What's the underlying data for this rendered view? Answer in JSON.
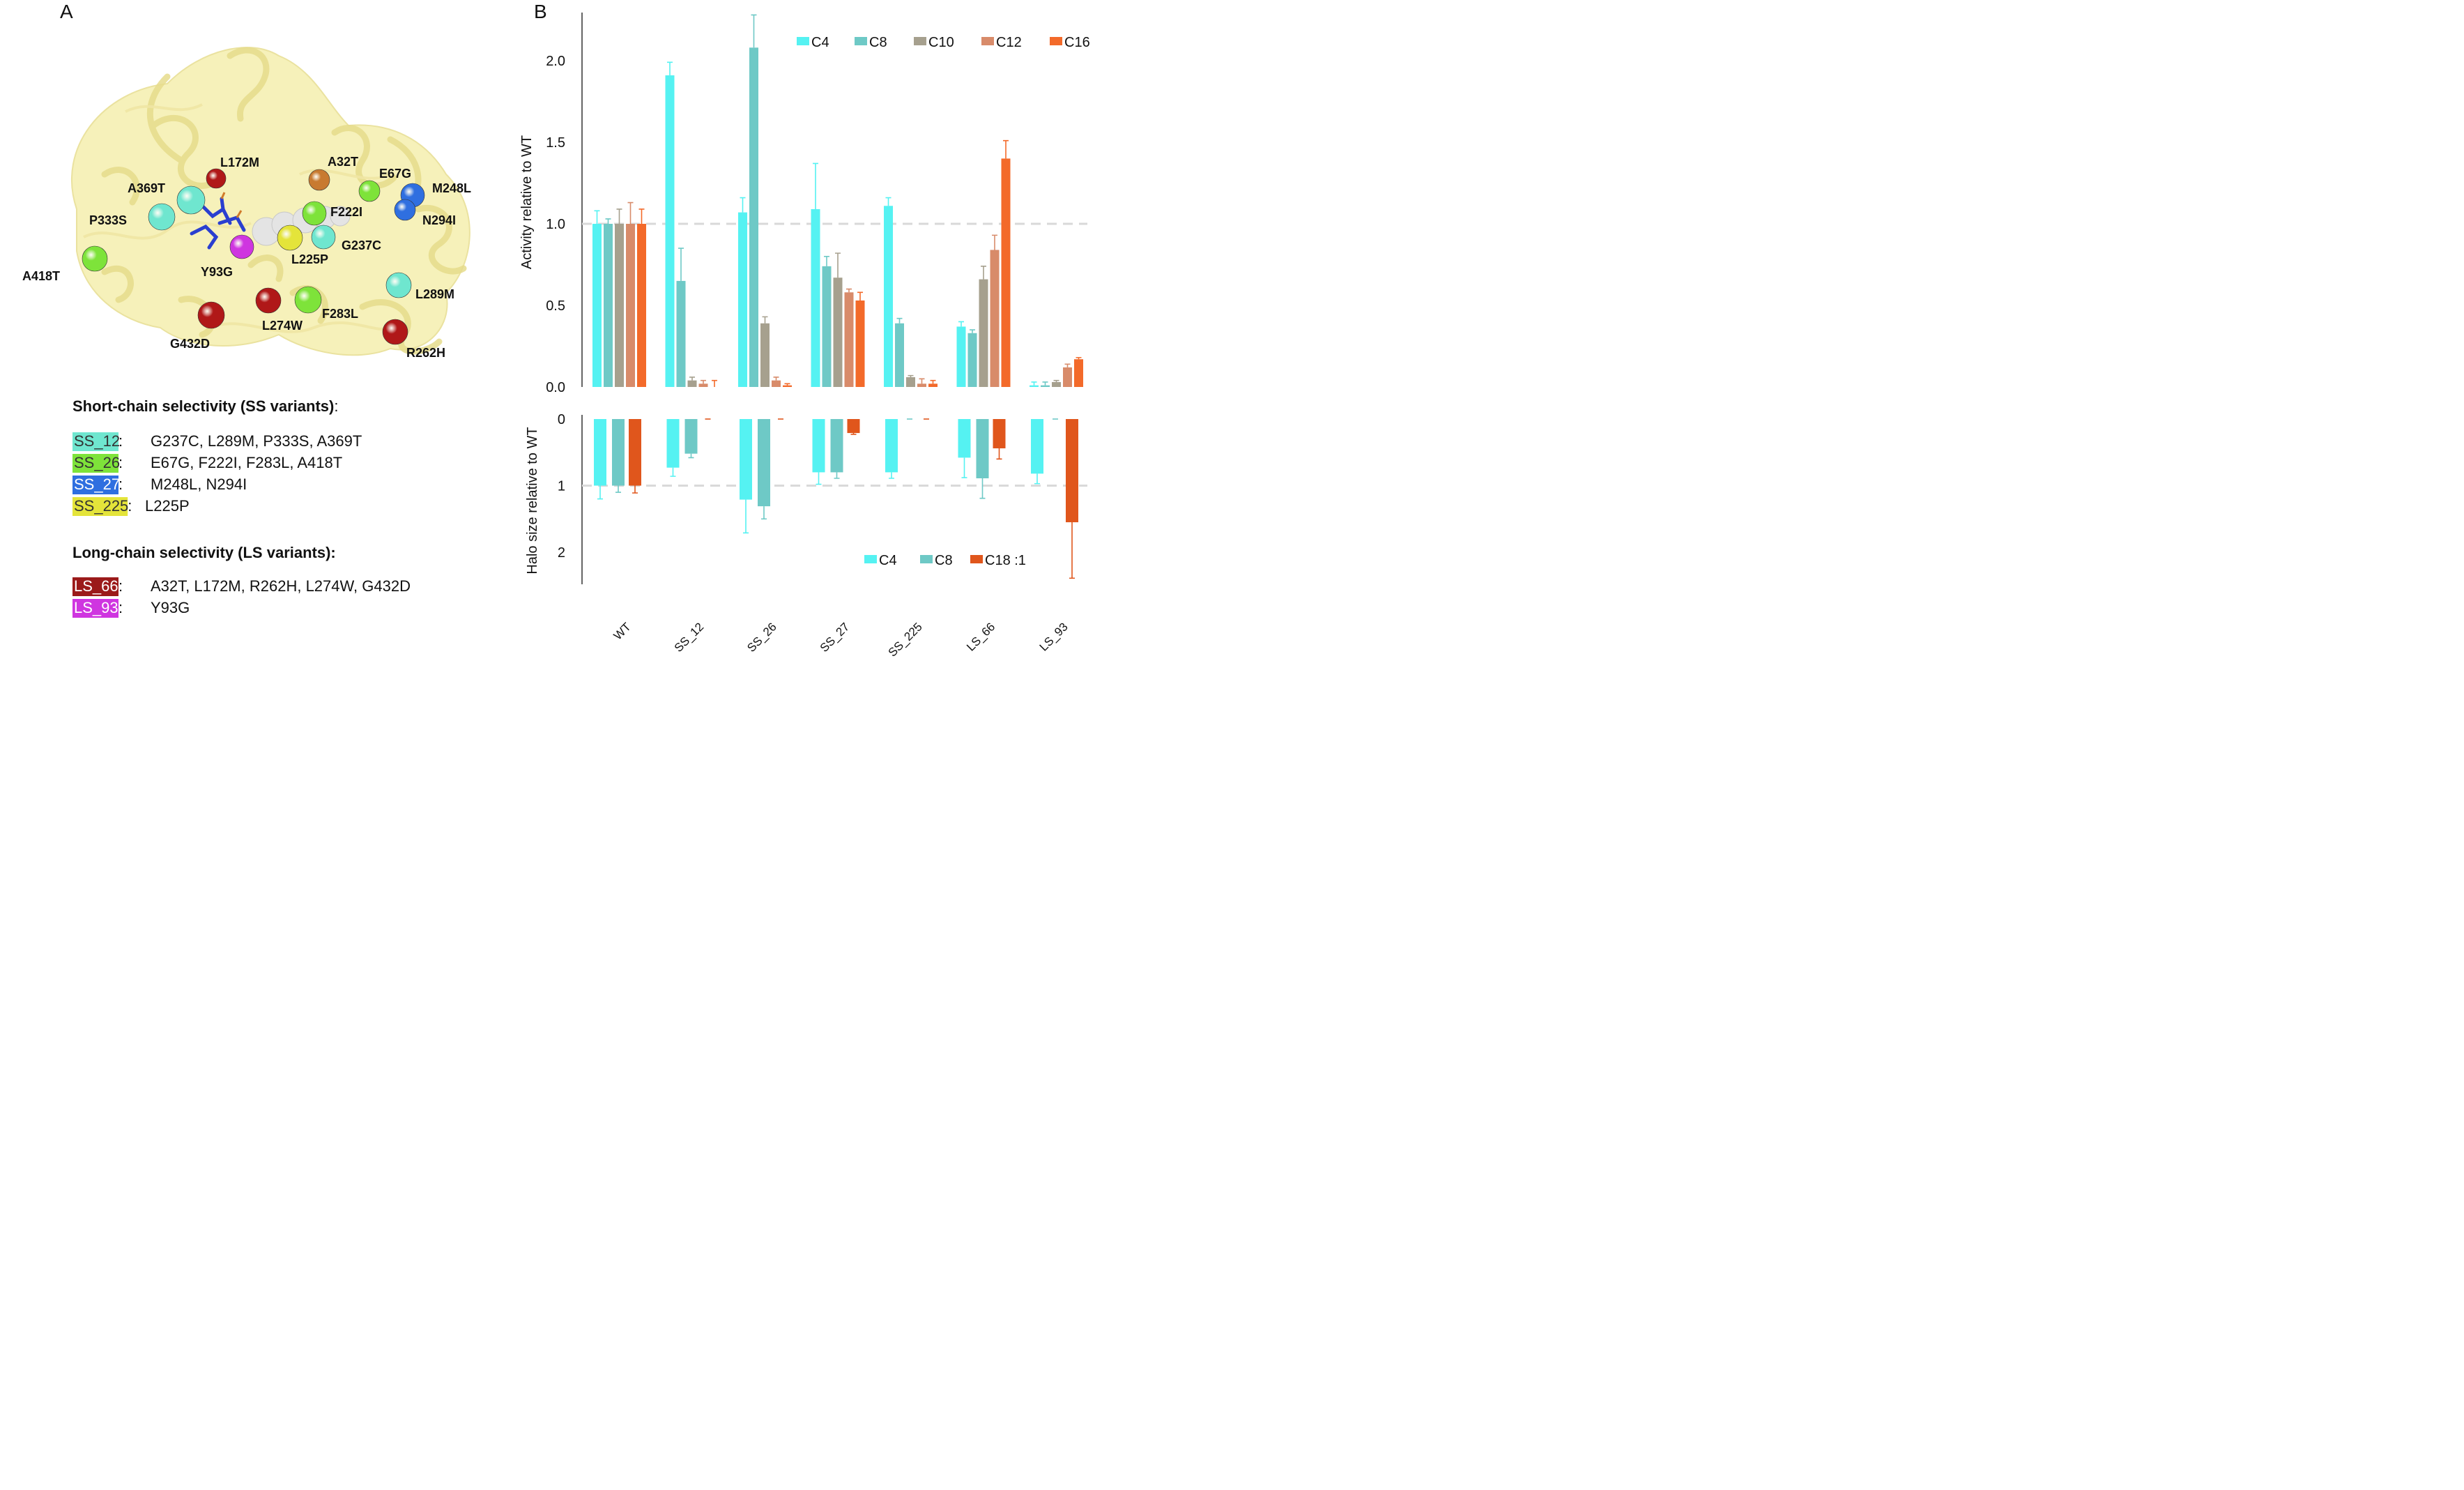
{
  "panelA": {
    "letter": "A",
    "residues": [
      {
        "label": "L172M",
        "color": "#b01818",
        "group": "LS_66"
      },
      {
        "label": "A32T",
        "color": "#c87a30",
        "group": "LS_66"
      },
      {
        "label": "E67G",
        "color": "#7ee33a",
        "group": "SS_26"
      },
      {
        "label": "M248L",
        "color": "#2f6fe0",
        "group": "SS_27"
      },
      {
        "label": "A369T",
        "color": "#6fe6cf",
        "group": "SS_12"
      },
      {
        "label": "F222I",
        "color": "#7ee33a",
        "group": "SS_26"
      },
      {
        "label": "N294I",
        "color": "#2f6fe0",
        "group": "SS_27"
      },
      {
        "label": "P333S",
        "color": "#6fe6cf",
        "group": "SS_12"
      },
      {
        "label": "G237C",
        "color": "#6fe6cf",
        "group": "SS_12"
      },
      {
        "label": "L225P",
        "color": "#e4e43a",
        "group": "SS_225"
      },
      {
        "label": "Y93G",
        "color": "#cf35e0",
        "group": "LS_93"
      },
      {
        "label": "A418T",
        "color": "#7ee33a",
        "group": "SS_26"
      },
      {
        "label": "L289M",
        "color": "#6fe6cf",
        "group": "SS_12"
      },
      {
        "label": "L274W",
        "color": "#b01818",
        "group": "LS_66"
      },
      {
        "label": "F283L",
        "color": "#7ee33a",
        "group": "SS_26"
      },
      {
        "label": "G432D",
        "color": "#b01818",
        "group": "LS_66"
      },
      {
        "label": "R262H",
        "color": "#b01818",
        "group": "LS_66"
      }
    ],
    "short_chain": {
      "title": "Short-chain selectivity (SS variants)",
      "title_suffix": ":",
      "variants": [
        {
          "tag": "SS_12",
          "sep": ":",
          "color": "#6fe6cf",
          "mutations": "G237C, L289M, P333S, A369T"
        },
        {
          "tag": "SS_26",
          "sep": ":",
          "color": "#7ee33a",
          "mutations": "E67G, F222I, F283L, A418T"
        },
        {
          "tag": "SS_27",
          "sep": ":",
          "color": "#2f6fe0",
          "mutations": "M248L, N294I"
        },
        {
          "tag": "SS_225",
          "sep": ":",
          "color": "#e4e43a",
          "mutations": "L225P"
        }
      ]
    },
    "long_chain": {
      "title": "Long-chain selectivity (LS variants):",
      "variants": [
        {
          "tag": "LS_66",
          "sep": ":",
          "color": "#9b1a1a",
          "mutations": "A32T, L172M, R262H, L274W, G432D"
        },
        {
          "tag": "LS_93",
          "sep": ":",
          "color": "#cf35e0",
          "mutations": "Y93G"
        }
      ]
    }
  },
  "panelB": {
    "letter": "B"
  },
  "chart_data": [
    {
      "type": "bar",
      "title": "",
      "xlabel": "",
      "ylabel": "Activity relative to WT",
      "ylim": [
        0,
        2.3
      ],
      "yticks": [
        "0.0",
        "0.5",
        "1.0",
        "1.5",
        "2.0"
      ],
      "reference_line": 1.0,
      "legend_position": "top-right",
      "categories": [
        "WT",
        "SS_12",
        "SS_26",
        "SS_27",
        "SS_225",
        "LS_66",
        "LS_93"
      ],
      "series": [
        {
          "name": "C4",
          "color": "#55f2f2",
          "values": [
            1.0,
            1.91,
            1.07,
            1.09,
            1.11,
            0.37,
            0.01
          ],
          "errors": [
            0.08,
            0.08,
            0.09,
            0.28,
            0.05,
            0.03,
            0.02
          ]
        },
        {
          "name": "C8",
          "color": "#6ec9c6",
          "values": [
            1.0,
            0.65,
            2.08,
            0.74,
            0.39,
            0.33,
            0.01
          ],
          "errors": [
            0.03,
            0.2,
            0.2,
            0.06,
            0.03,
            0.02,
            0.02
          ]
        },
        {
          "name": "C10",
          "color": "#a6a08e",
          "values": [
            1.0,
            0.04,
            0.39,
            0.67,
            0.06,
            0.66,
            0.03
          ],
          "errors": [
            0.09,
            0.02,
            0.04,
            0.15,
            0.01,
            0.08,
            0.01
          ]
        },
        {
          "name": "C12",
          "color": "#d88b6a",
          "values": [
            1.0,
            0.02,
            0.04,
            0.58,
            0.02,
            0.84,
            0.12
          ],
          "errors": [
            0.13,
            0.02,
            0.02,
            0.02,
            0.03,
            0.09,
            0.02
          ]
        },
        {
          "name": "C16",
          "color": "#f36a2a",
          "values": [
            1.0,
            0.0,
            0.01,
            0.53,
            0.02,
            1.4,
            0.17
          ],
          "errors": [
            0.09,
            0.04,
            0.01,
            0.05,
            0.02,
            0.11,
            0.01
          ]
        }
      ]
    },
    {
      "type": "bar",
      "title": "",
      "xlabel": "",
      "ylabel": "Halo size relative to WT",
      "ylim": [
        0,
        2.5
      ],
      "yticks": [
        "0",
        "1",
        "2"
      ],
      "y_inverted": true,
      "reference_line": 1.0,
      "legend_position": "bottom-right",
      "categories": [
        "WT",
        "SS_12",
        "SS_26",
        "SS_27",
        "SS_225",
        "LS_66",
        "LS_93"
      ],
      "series": [
        {
          "name": "C4",
          "color": "#55f2f2",
          "values": [
            1.0,
            0.73,
            1.21,
            0.8,
            0.8,
            0.58,
            0.82
          ],
          "errors": [
            0.2,
            0.13,
            0.5,
            0.18,
            0.09,
            0.3,
            0.15
          ]
        },
        {
          "name": "C8",
          "color": "#6ec9c6",
          "values": [
            1.0,
            0.52,
            1.31,
            0.8,
            0.0,
            0.89,
            0.0
          ],
          "errors": [
            0.1,
            0.06,
            0.19,
            0.09,
            0.0,
            0.3,
            0.0
          ]
        },
        {
          "name": "C18:1",
          "color": "#e0561c",
          "values": [
            1.0,
            0.0,
            0.0,
            0.21,
            0.0,
            0.44,
            1.55
          ],
          "errors": [
            0.11,
            0.0,
            0.0,
            0.02,
            0.0,
            0.16,
            0.84
          ]
        }
      ],
      "legend_labels": [
        "C4",
        "C8",
        "C18 :1"
      ]
    }
  ]
}
